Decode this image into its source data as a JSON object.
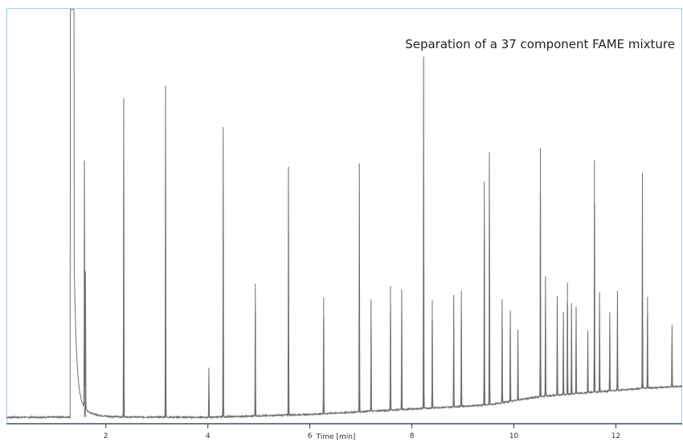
{
  "chart_data": {
    "type": "line",
    "title": "",
    "annotation": "Separation of a 37 component FAME mixture",
    "xlabel": "Time [min]",
    "ylabel": "",
    "xlim": [
      0.05,
      13.3
    ],
    "ylim": [
      0,
      100
    ],
    "xticks": [
      2,
      4,
      6,
      8,
      10,
      12
    ],
    "grid": false,
    "legend": "none",
    "colors": {
      "trace": "#6e6e6e",
      "frame": "#9fd0df",
      "axis": "#333333"
    },
    "series": [
      {
        "solvent_front": {
          "start": 1.3,
          "apex": 1.38,
          "decay_to": 1.9
        },
        "baseline": [
          [
            0.05,
            1.5
          ],
          [
            2.0,
            1.6
          ],
          [
            4.0,
            1.5
          ],
          [
            6.0,
            2.2
          ],
          [
            8.0,
            3.5
          ],
          [
            9.5,
            4.5
          ],
          [
            10.5,
            6.5
          ],
          [
            11.5,
            7.5
          ],
          [
            12.5,
            8.5
          ],
          [
            13.3,
            9.0
          ]
        ],
        "peaks": [
          [
            1.58,
            62
          ],
          [
            1.6,
            34
          ],
          [
            2.35,
            77
          ],
          [
            3.17,
            80
          ],
          [
            4.02,
            12
          ],
          [
            4.3,
            70
          ],
          [
            4.93,
            32
          ],
          [
            5.58,
            60
          ],
          [
            6.27,
            28
          ],
          [
            6.97,
            60
          ],
          [
            7.2,
            27
          ],
          [
            7.58,
            30
          ],
          [
            7.8,
            29
          ],
          [
            8.23,
            85
          ],
          [
            8.4,
            26
          ],
          [
            8.82,
            27
          ],
          [
            8.97,
            28
          ],
          [
            9.42,
            54
          ],
          [
            9.52,
            61
          ],
          [
            9.77,
            25
          ],
          [
            9.93,
            22
          ],
          [
            10.08,
            17
          ],
          [
            10.52,
            60
          ],
          [
            10.62,
            29
          ],
          [
            10.85,
            24
          ],
          [
            10.97,
            20
          ],
          [
            11.05,
            27
          ],
          [
            11.13,
            22
          ],
          [
            11.22,
            21
          ],
          [
            11.45,
            15
          ],
          [
            11.58,
            56
          ],
          [
            11.68,
            24
          ],
          [
            11.88,
            19
          ],
          [
            12.03,
            24
          ],
          [
            12.52,
            52
          ],
          [
            12.62,
            22
          ],
          [
            13.1,
            15
          ]
        ]
      }
    ]
  }
}
